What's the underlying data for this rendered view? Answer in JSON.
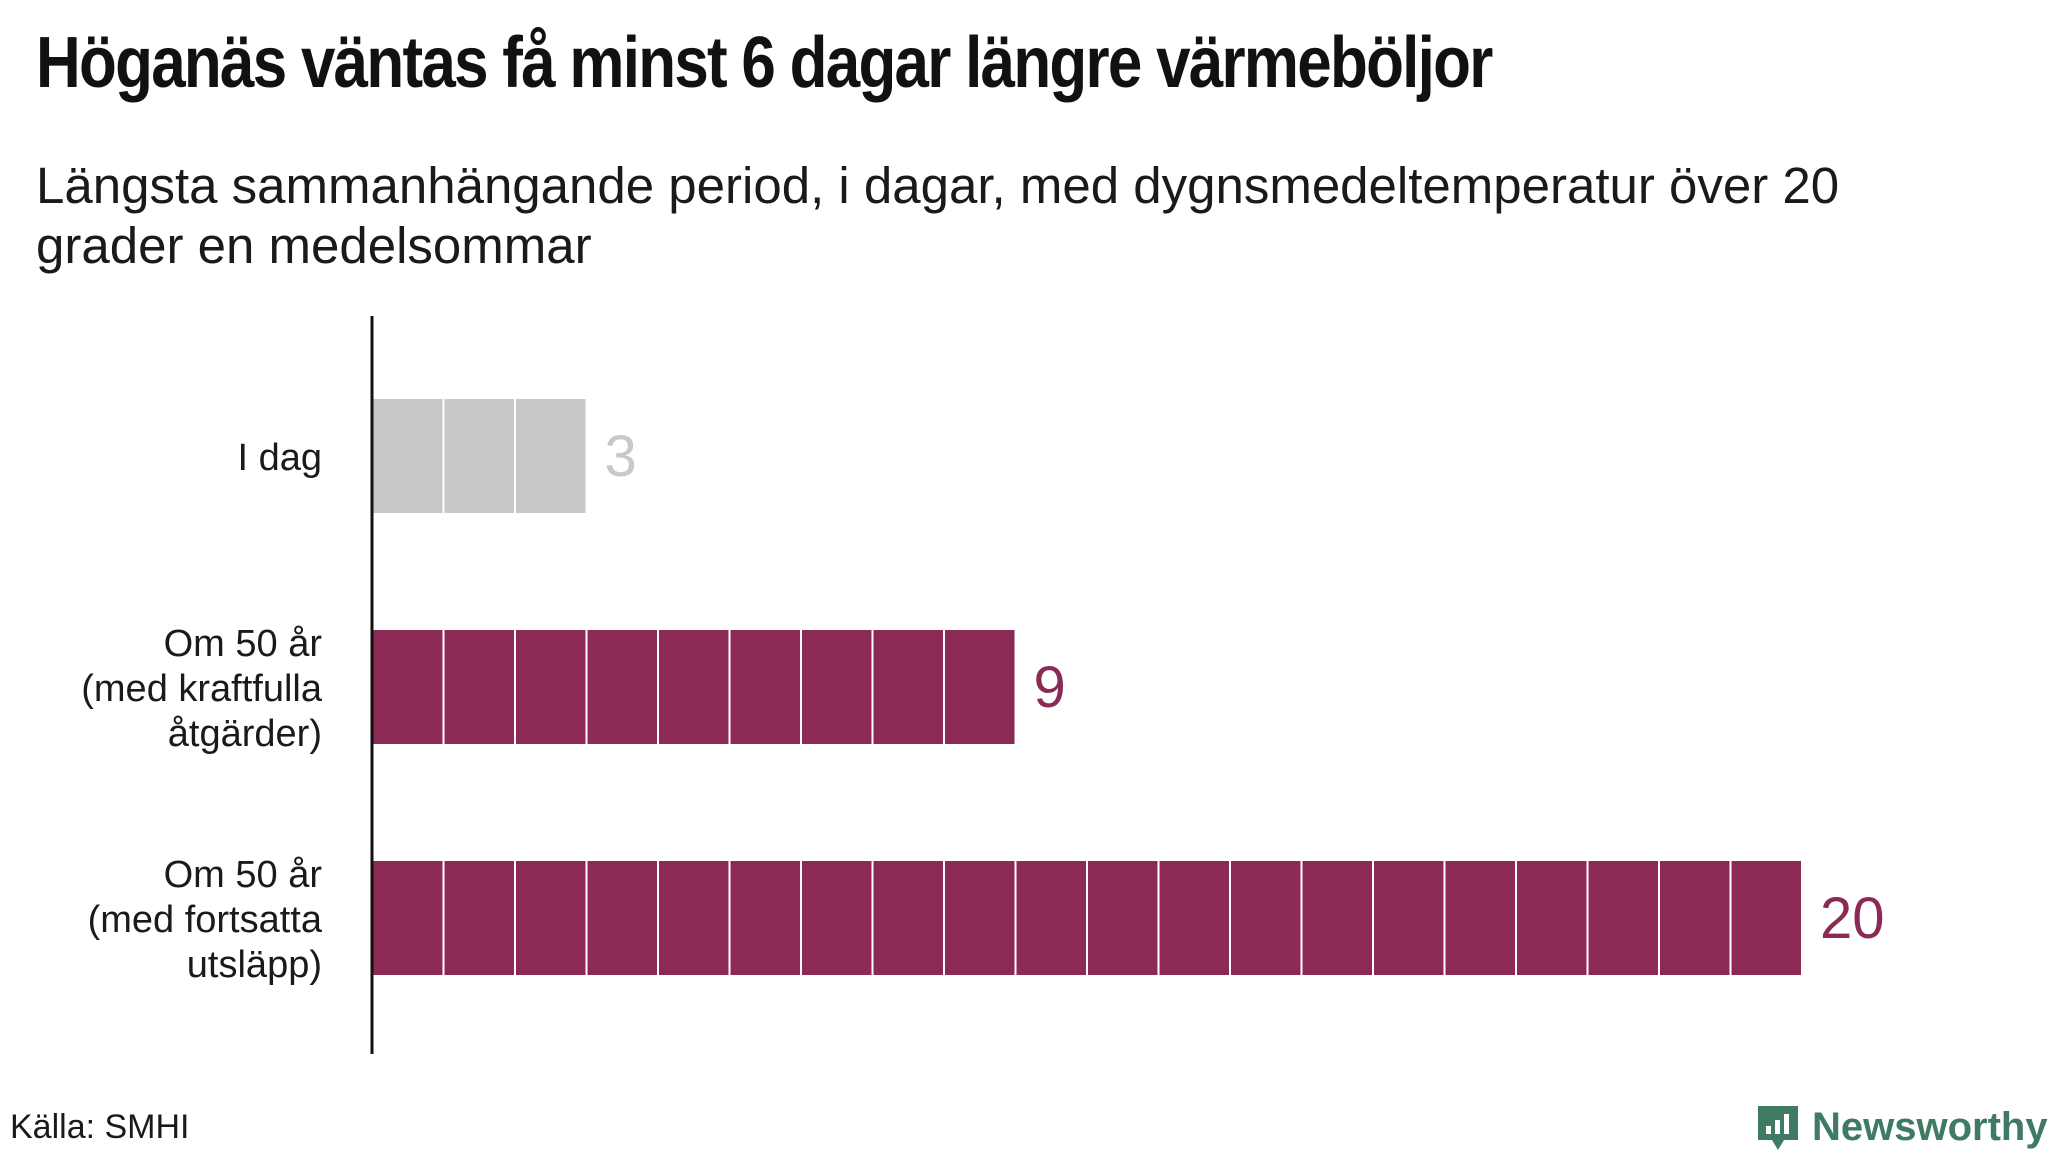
{
  "title": "Höganäs väntas få minst 6 dagar längre värmeböljor",
  "subtitle": "Längsta sammanhängande period, i dagar, med dygnsmedeltemperatur över 20 grader en medelsommar",
  "source": "Källa: SMHI",
  "brand": {
    "name": "Newsworthy",
    "icon": "newsworthy-logo-icon",
    "color": "#3f7a63"
  },
  "chart_data": {
    "type": "bar",
    "orientation": "horizontal",
    "categories": [
      [
        "I dag"
      ],
      [
        "Om 50 år",
        "(med kraftfulla",
        "åtgärder)"
      ],
      [
        "Om 50 år",
        "(med fortsatta",
        "utsläpp)"
      ]
    ],
    "values": [
      3,
      9,
      20
    ],
    "value_labels": [
      "3",
      "9",
      "20"
    ],
    "colors": [
      "#c8c8c8",
      "#8b2a55",
      "#8b2a55"
    ],
    "value_label_colors": [
      "#c8c8c8",
      "#8b2a55",
      "#8b2a55"
    ],
    "bar_style": "one segment per day",
    "x_axis_visible": false,
    "grid": false,
    "legend": "none"
  }
}
